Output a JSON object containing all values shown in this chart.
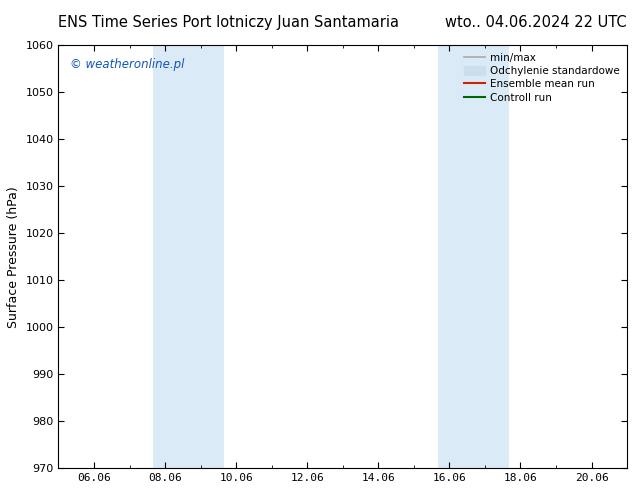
{
  "title_left": "ENS Time Series Port lotniczy Juan Santamaria",
  "title_right": "wto.. 04.06.2024 22 UTC",
  "ylabel": "Surface Pressure (hPa)",
  "ylim": [
    970,
    1060
  ],
  "yticks": [
    970,
    980,
    990,
    1000,
    1010,
    1020,
    1030,
    1040,
    1050,
    1060
  ],
  "xtick_labels": [
    "06.06",
    "08.06",
    "10.06",
    "12.06",
    "14.06",
    "16.06",
    "18.06",
    "20.06"
  ],
  "xmin": 0.0,
  "xmax": 16.0,
  "shaded_bands": [
    {
      "xmin": 2.67,
      "xmax": 4.67
    },
    {
      "xmin": 10.67,
      "xmax": 12.67
    }
  ],
  "shade_color": "#daeaf7",
  "watermark_text": "© weatheronline.pl",
  "watermark_color": "#1155bb",
  "legend_entries": [
    {
      "label": "min/max",
      "color": "#aaaaaa",
      "lw": 1.2,
      "type": "line"
    },
    {
      "label": "Odchylenie standardowe",
      "color": "#ccdded",
      "lw": 8,
      "type": "patch"
    },
    {
      "label": "Ensemble mean run",
      "color": "#cc2200",
      "lw": 1.5,
      "type": "line"
    },
    {
      "label": "Controll run",
      "color": "#006600",
      "lw": 1.5,
      "type": "line"
    }
  ],
  "bg_color": "#ffffff",
  "title_fontsize": 10.5,
  "axis_label_fontsize": 9,
  "tick_fontsize": 8,
  "watermark_fontsize": 8.5,
  "legend_fontsize": 7.5
}
